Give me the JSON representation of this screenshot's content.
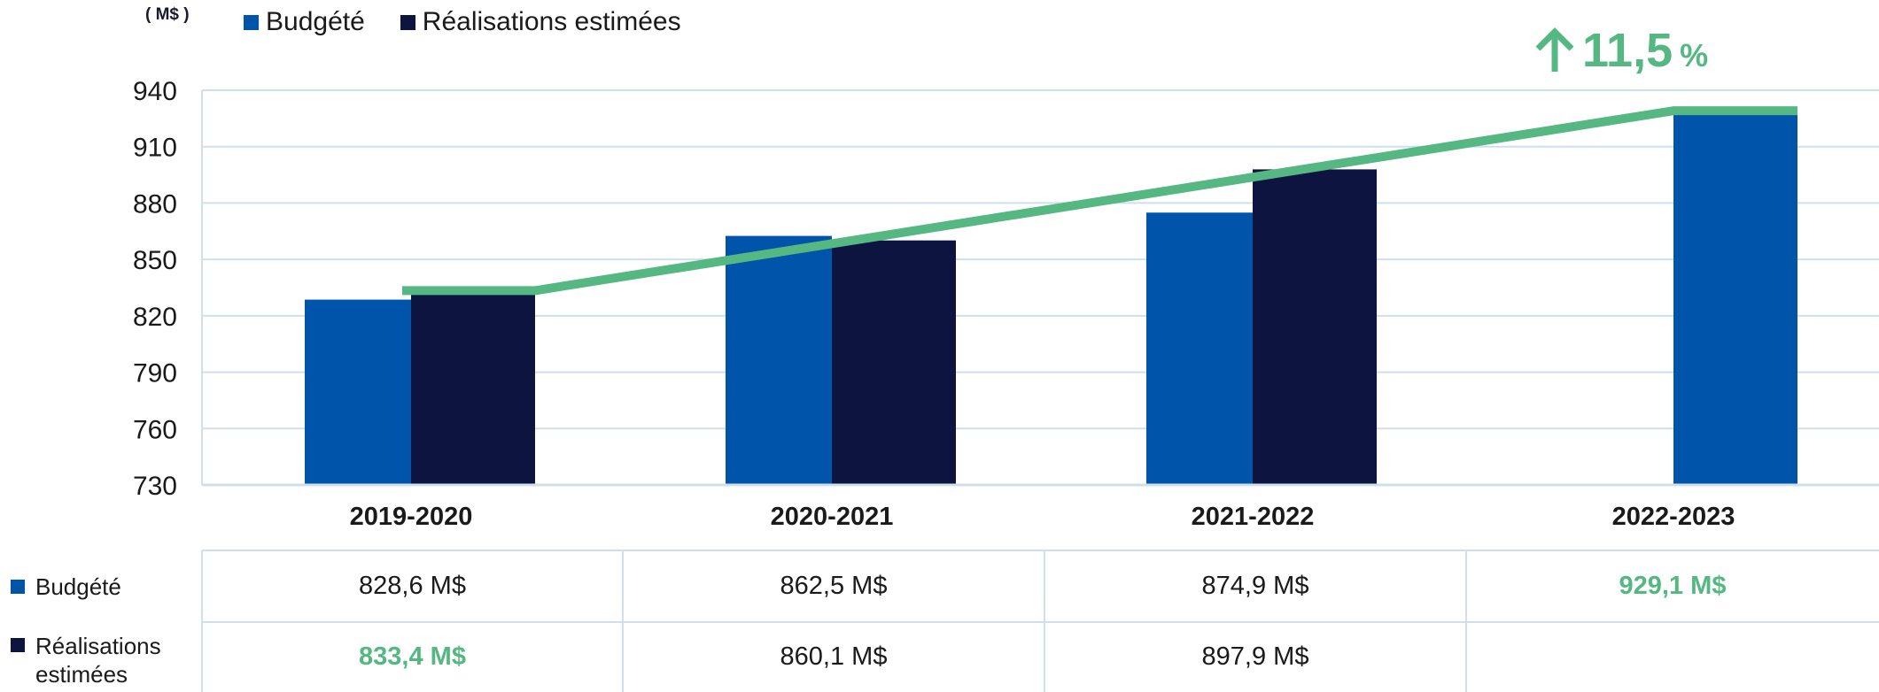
{
  "colors": {
    "budgete": "#0055aa",
    "realisations": "#0e1440",
    "trend": "#55b882",
    "grid": "#cfe0ea"
  },
  "unit_label": "( M$ )",
  "legend": [
    {
      "label": "Budgété",
      "color": "#0055aa"
    },
    {
      "label": "Réalisations estimées",
      "color": "#0e1440"
    }
  ],
  "growth": {
    "icon": "arrow-up-icon",
    "value": "11,5",
    "unit": "%"
  },
  "chart_data": {
    "type": "bar",
    "categories": [
      "2019-2020",
      "2020-2021",
      "2021-2022",
      "2022-2023"
    ],
    "series": [
      {
        "name": "Budgété",
        "values": [
          828.6,
          862.5,
          874.9,
          929.1
        ]
      },
      {
        "name": "Réalisations estimées",
        "values": [
          833.4,
          860.1,
          897.9,
          null
        ]
      }
    ],
    "trend_line": {
      "from": {
        "category": "2019-2020",
        "value": 833.4
      },
      "to": {
        "category": "2022-2023",
        "value": 929.1
      }
    },
    "ylim": [
      730,
      940
    ],
    "yticks": [
      730,
      760,
      790,
      820,
      850,
      880,
      910,
      940
    ],
    "grid": true,
    "legend_position": "top-left"
  },
  "table": {
    "rows": [
      {
        "label": "Budgété",
        "color": "#0055aa",
        "cells": [
          {
            "text": "828,6 M$",
            "hl": false
          },
          {
            "text": "862,5 M$",
            "hl": false
          },
          {
            "text": "874,9 M$",
            "hl": false
          },
          {
            "text": "929,1 M$",
            "hl": true
          }
        ]
      },
      {
        "label": "Réalisations estimées",
        "color": "#0e1440",
        "cells": [
          {
            "text": "833,4 M$",
            "hl": true
          },
          {
            "text": "860,1 M$",
            "hl": false
          },
          {
            "text": "897,9 M$",
            "hl": false
          },
          {
            "text": "",
            "hl": false
          }
        ]
      }
    ]
  }
}
